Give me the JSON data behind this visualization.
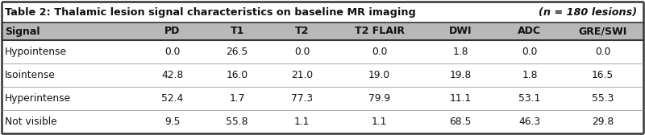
{
  "title_main": "Table 2: Thalamic lesion signal characteristics on baseline MR imaging ",
  "title_italic": "(n = 180 lesions)",
  "columns": [
    "Signal",
    "PD",
    "T1",
    "T2",
    "T2 FLAIR",
    "DWI",
    "ADC",
    "GRE/SWI"
  ],
  "rows": [
    [
      "Hypointense",
      "0.0",
      "26.5",
      "0.0",
      "0.0",
      "1.8",
      "0.0",
      "0.0"
    ],
    [
      "Isointense",
      "42.8",
      "16.0",
      "21.0",
      "19.0",
      "19.8",
      "1.8",
      "16.5"
    ],
    [
      "Hyperintense",
      "52.4",
      "1.7",
      "77.3",
      "79.9",
      "11.1",
      "53.1",
      "55.3"
    ],
    [
      "Not visible",
      "9.5",
      "55.8",
      "1.1",
      "1.1",
      "68.5",
      "46.3",
      "29.8"
    ]
  ],
  "title_bg": "#ffffff",
  "header_bg": "#b8b8b8",
  "row_bg_odd": "#ffffff",
  "row_bg_even": "#ffffff",
  "outer_border_color": "#333333",
  "inner_line_color": "#888888",
  "title_font_size": 9.2,
  "header_font_size": 9.0,
  "data_font_size": 8.8,
  "col_widths_rel": [
    1.7,
    0.8,
    0.8,
    0.8,
    1.1,
    0.9,
    0.8,
    1.0
  ]
}
